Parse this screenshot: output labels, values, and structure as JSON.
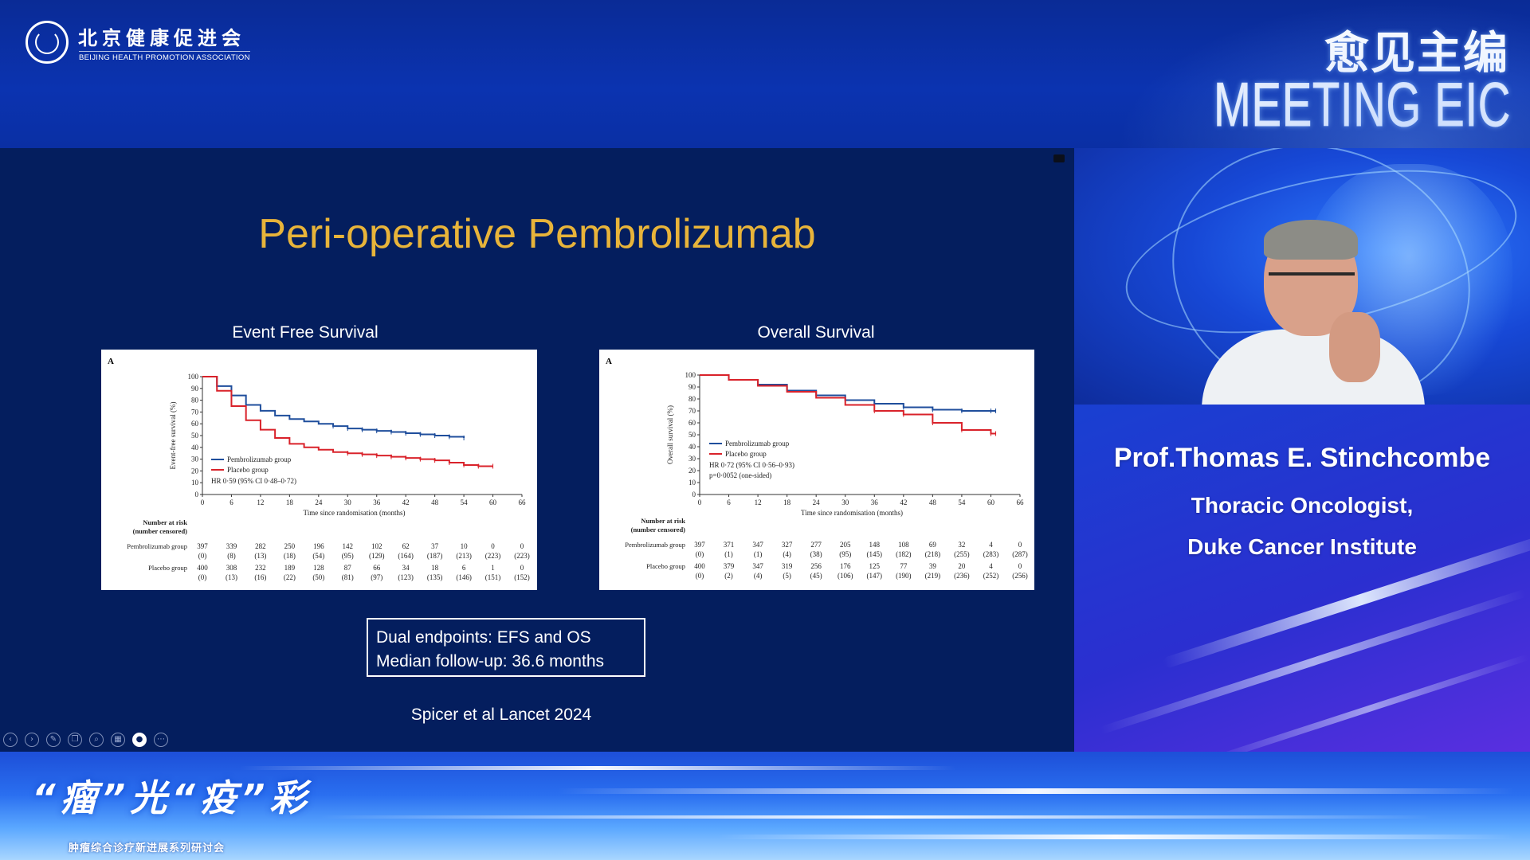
{
  "header": {
    "org_name": "北京健康促进会",
    "org_name_en": "BEIJING HEALTH PROMOTION ASSOCIATION",
    "brand_cn": "愈见主编",
    "brand_en": "MEETING EIC"
  },
  "slide": {
    "title": "Peri-operative Pembrolizumab",
    "efs_heading": "Event Free Survival",
    "os_heading": "Overall Survival",
    "summary_line1": "Dual endpoints: EFS and OS",
    "summary_line2": "Median follow-up: 36.6 months",
    "citation": "Spicer et al Lancet 2024",
    "toolbar": [
      "prev-icon",
      "next-icon",
      "pen-icon",
      "copy-icon",
      "zoom-icon",
      "grid-icon",
      "camera-icon",
      "more-icon"
    ]
  },
  "chart_data": [
    {
      "type": "line",
      "panel_label": "A",
      "ylabel": "Event-free survival (%)",
      "xlabel": "Time since randomisation (months)",
      "xlim": [
        0,
        66
      ],
      "ylim": [
        0,
        100
      ],
      "x_ticks": [
        0,
        6,
        12,
        18,
        24,
        30,
        36,
        42,
        48,
        54,
        60,
        66
      ],
      "y_ticks": [
        0,
        10,
        20,
        30,
        40,
        50,
        60,
        70,
        80,
        90,
        100
      ],
      "legend": [
        "Pembrolizumab group",
        "Placebo group"
      ],
      "annotations": [
        "HR 0·59 (95% CI 0·48–0·72)"
      ],
      "series": [
        {
          "name": "Pembrolizumab group",
          "color": "#1f4e9c",
          "x": [
            0,
            3,
            6,
            9,
            12,
            15,
            18,
            21,
            24,
            27,
            30,
            33,
            36,
            39,
            42,
            45,
            48,
            51,
            54
          ],
          "y": [
            100,
            92,
            84,
            76,
            71,
            67,
            64,
            62,
            60,
            58,
            56,
            55,
            54,
            53,
            52,
            51,
            50,
            49,
            48
          ]
        },
        {
          "name": "Placebo group",
          "color": "#d9222a",
          "x": [
            0,
            3,
            6,
            9,
            12,
            15,
            18,
            21,
            24,
            27,
            30,
            33,
            36,
            39,
            42,
            45,
            48,
            51,
            54,
            57,
            60
          ],
          "y": [
            100,
            88,
            75,
            63,
            55,
            48,
            43,
            40,
            38,
            36,
            35,
            34,
            33,
            32,
            31,
            30,
            29,
            27,
            25,
            24,
            24
          ]
        }
      ],
      "risk_table": {
        "header": "Number at risk\n(number censored)",
        "rows": [
          {
            "label": "Pembrolizumab group",
            "at_risk": [
              "397",
              "339",
              "282",
              "250",
              "196",
              "142",
              "102",
              "62",
              "37",
              "10",
              "0",
              "0"
            ],
            "censored": [
              "(0)",
              "(8)",
              "(13)",
              "(18)",
              "(54)",
              "(95)",
              "(129)",
              "(164)",
              "(187)",
              "(213)",
              "(223)",
              "(223)"
            ]
          },
          {
            "label": "Placebo group",
            "at_risk": [
              "400",
              "308",
              "232",
              "189",
              "128",
              "87",
              "66",
              "34",
              "18",
              "6",
              "1",
              "0"
            ],
            "censored": [
              "(0)",
              "(13)",
              "(16)",
              "(22)",
              "(50)",
              "(81)",
              "(97)",
              "(123)",
              "(135)",
              "(146)",
              "(151)",
              "(152)"
            ]
          }
        ]
      }
    },
    {
      "type": "line",
      "panel_label": "A",
      "ylabel": "Overall survival (%)",
      "xlabel": "Time since randomisation (months)",
      "xlim": [
        0,
        66
      ],
      "ylim": [
        0,
        100
      ],
      "x_ticks": [
        0,
        6,
        12,
        18,
        24,
        30,
        36,
        42,
        48,
        54,
        60,
        66
      ],
      "y_ticks": [
        0,
        10,
        20,
        30,
        40,
        50,
        60,
        70,
        80,
        90,
        100
      ],
      "legend": [
        "Pembrolizumab group",
        "Placebo group"
      ],
      "annotations": [
        "HR 0·72 (95% CI 0·56–0·93)",
        "p=0·0052 (one-sided)"
      ],
      "series": [
        {
          "name": "Pembrolizumab group",
          "color": "#1f4e9c",
          "x": [
            0,
            6,
            12,
            18,
            24,
            30,
            36,
            42,
            48,
            54,
            60,
            61
          ],
          "y": [
            100,
            96,
            92,
            87,
            83,
            79,
            76,
            73,
            71,
            70,
            70,
            70
          ]
        },
        {
          "name": "Placebo group",
          "color": "#d9222a",
          "x": [
            0,
            6,
            12,
            18,
            24,
            30,
            36,
            42,
            48,
            54,
            60,
            61
          ],
          "y": [
            100,
            96,
            91,
            86,
            81,
            75,
            70,
            67,
            60,
            54,
            51,
            51
          ]
        }
      ],
      "risk_table": {
        "header": "Number at risk\n(number censored)",
        "rows": [
          {
            "label": "Pembrolizumab group",
            "at_risk": [
              "397",
              "371",
              "347",
              "327",
              "277",
              "205",
              "148",
              "108",
              "69",
              "32",
              "4",
              "0"
            ],
            "censored": [
              "(0)",
              "(1)",
              "(1)",
              "(4)",
              "(38)",
              "(95)",
              "(145)",
              "(182)",
              "(218)",
              "(255)",
              "(283)",
              "(287)"
            ]
          },
          {
            "label": "Placebo group",
            "at_risk": [
              "400",
              "379",
              "347",
              "319",
              "256",
              "176",
              "125",
              "77",
              "39",
              "20",
              "4",
              "0"
            ],
            "censored": [
              "(0)",
              "(2)",
              "(4)",
              "(5)",
              "(45)",
              "(106)",
              "(147)",
              "(190)",
              "(219)",
              "(236)",
              "(252)",
              "(256)"
            ]
          }
        ]
      }
    }
  ],
  "speaker": {
    "name": "Prof.Thomas E. Stinchcombe",
    "role_line1": "Thoracic Oncologist,",
    "role_line2": "Duke Cancer Institute"
  },
  "footer": {
    "campaign_title": "“瘤”光“疫”彩",
    "campaign_sub": "肿瘤综合诊疗新进展系列研讨会"
  }
}
